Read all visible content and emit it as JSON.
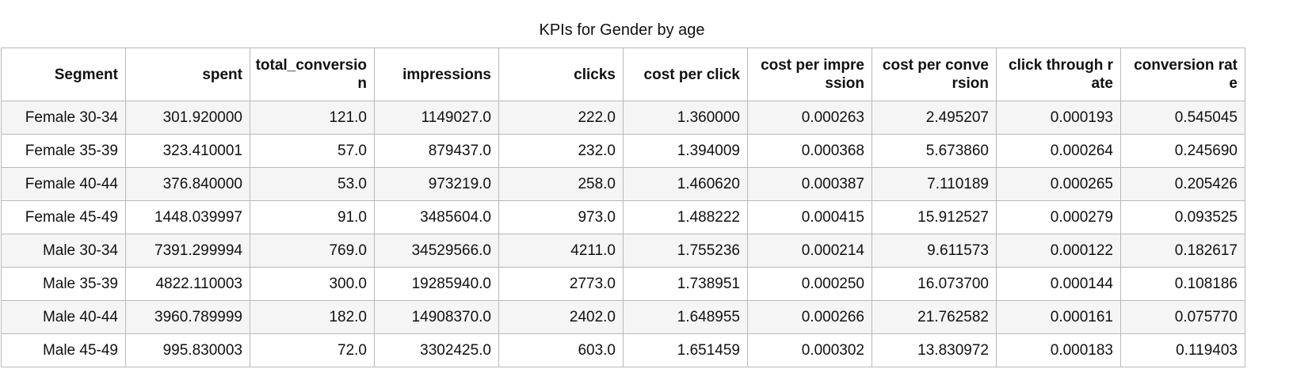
{
  "chart_data": {
    "type": "table",
    "title": "KPIs for Gender by age",
    "columns": [
      "Segment",
      "spent",
      "total_conversion",
      "impressions",
      "clicks",
      "cost per click",
      "cost per impression",
      "cost per conversion",
      "click through rate",
      "conversion rate"
    ],
    "rows": [
      [
        "Female 30-34",
        "301.920000",
        "121.0",
        "1149027.0",
        "222.0",
        "1.360000",
        "0.000263",
        "2.495207",
        "0.000193",
        "0.545045"
      ],
      [
        "Female 35-39",
        "323.410001",
        "57.0",
        "879437.0",
        "232.0",
        "1.394009",
        "0.000368",
        "5.673860",
        "0.000264",
        "0.245690"
      ],
      [
        "Female 40-44",
        "376.840000",
        "53.0",
        "973219.0",
        "258.0",
        "1.460620",
        "0.000387",
        "7.110189",
        "0.000265",
        "0.205426"
      ],
      [
        "Female 45-49",
        "1448.039997",
        "91.0",
        "3485604.0",
        "973.0",
        "1.488222",
        "0.000415",
        "15.912527",
        "0.000279",
        "0.093525"
      ],
      [
        "Male 30-34",
        "7391.299994",
        "769.0",
        "34529566.0",
        "4211.0",
        "1.755236",
        "0.000214",
        "9.611573",
        "0.000122",
        "0.182617"
      ],
      [
        "Male 35-39",
        "4822.110003",
        "300.0",
        "19285940.0",
        "2773.0",
        "1.738951",
        "0.000250",
        "16.073700",
        "0.000144",
        "0.108186"
      ],
      [
        "Male 40-44",
        "3960.789999",
        "182.0",
        "14908370.0",
        "2402.0",
        "1.648955",
        "0.000266",
        "21.762582",
        "0.000161",
        "0.075770"
      ],
      [
        "Male 45-49",
        "995.830003",
        "72.0",
        "3302425.0",
        "603.0",
        "1.651459",
        "0.000302",
        "13.830972",
        "0.000183",
        "0.119403"
      ]
    ]
  }
}
